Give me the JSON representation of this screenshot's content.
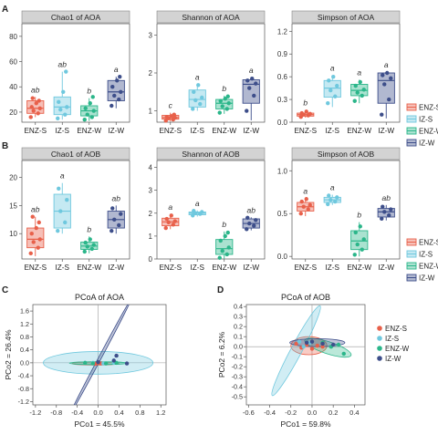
{
  "panel_labels": [
    "A",
    "B",
    "C",
    "D"
  ],
  "colors": {
    "ENZ-S": "#e8604a",
    "IZ-S": "#6fc8de",
    "ENZ-W": "#2bb68a",
    "IZ-W": "#3d4e8a",
    "strip": "#d3d3d3"
  },
  "box_groups": [
    "ENZ-S",
    "IZ-S",
    "ENZ-W",
    "IZ-W"
  ],
  "box_legend": [
    "ENZ-S",
    "IZ-S",
    "ENZ-W",
    "IZ-W"
  ],
  "pcoa_legend": [
    "ENZ-S",
    "IZ-S",
    "ENZ-W",
    "IZ-W"
  ],
  "chart_data": [
    {
      "type": "box",
      "title": "Chao1 of AOA",
      "ylim": [
        12,
        90
      ],
      "yticks": [
        20,
        40,
        60,
        80
      ],
      "groups": [
        "ENZ-S",
        "IZ-S",
        "ENZ-W",
        "IZ-W"
      ],
      "letters": [
        "ab",
        "ab",
        "b",
        "a"
      ],
      "boxes": [
        {
          "min": 16,
          "q1": 19,
          "median": 23,
          "q3": 29,
          "max": 32,
          "points": [
            16,
            19,
            21,
            23,
            24,
            27,
            29,
            31
          ]
        },
        {
          "min": 14,
          "q1": 18,
          "median": 24,
          "q3": 32,
          "max": 52,
          "points": [
            15,
            18,
            22,
            24,
            28,
            36,
            52
          ]
        },
        {
          "min": 13,
          "q1": 17,
          "median": 21,
          "q3": 25,
          "max": 31,
          "points": [
            14,
            16,
            18,
            21,
            23,
            27,
            32
          ]
        },
        {
          "min": 23,
          "q1": 29,
          "median": 36,
          "q3": 45,
          "max": 48,
          "points": [
            25,
            30,
            33,
            36,
            40,
            45,
            48
          ]
        }
      ]
    },
    {
      "type": "box",
      "title": "Shannon of AOA",
      "ylim": [
        0.7,
        3.3
      ],
      "yticks": [
        1,
        2,
        3
      ],
      "groups": [
        "ENZ-S",
        "IZ-S",
        "ENZ-W",
        "IZ-W"
      ],
      "letters": [
        "c",
        "a",
        "b",
        "a"
      ],
      "boxes": [
        {
          "min": 0.72,
          "q1": 0.78,
          "median": 0.82,
          "q3": 0.88,
          "max": 0.95,
          "points": [
            0.74,
            0.77,
            0.8,
            0.82,
            0.84,
            0.86,
            0.9
          ]
        },
        {
          "min": 1.0,
          "q1": 1.1,
          "median": 1.3,
          "q3": 1.55,
          "max": 1.7,
          "points": [
            1.05,
            1.18,
            1.28,
            1.35,
            1.5,
            1.68
          ]
        },
        {
          "min": 0.92,
          "q1": 1.05,
          "median": 1.2,
          "q3": 1.3,
          "max": 1.4,
          "points": [
            0.95,
            1.05,
            1.12,
            1.2,
            1.26,
            1.32,
            1.38
          ]
        },
        {
          "min": 0.75,
          "q1": 1.2,
          "median": 1.7,
          "q3": 1.82,
          "max": 1.88,
          "points": [
            1.0,
            1.4,
            1.6,
            1.72,
            1.8,
            1.85
          ]
        }
      ]
    },
    {
      "type": "box",
      "title": "Simpson of AOA",
      "ylim": [
        0.0,
        1.3
      ],
      "yticks": [
        0.0,
        0.3,
        0.6,
        0.9,
        1.2
      ],
      "groups": [
        "ENZ-S",
        "IZ-S",
        "ENZ-W",
        "IZ-W"
      ],
      "letters": [
        "b",
        "a",
        "a",
        "a"
      ],
      "boxes": [
        {
          "min": 0.06,
          "q1": 0.08,
          "median": 0.1,
          "q3": 0.12,
          "max": 0.16,
          "points": [
            0.07,
            0.09,
            0.1,
            0.11,
            0.12,
            0.14
          ]
        },
        {
          "min": 0.2,
          "q1": 0.33,
          "median": 0.45,
          "q3": 0.55,
          "max": 0.62,
          "points": [
            0.25,
            0.34,
            0.42,
            0.48,
            0.55,
            0.6
          ]
        },
        {
          "min": 0.25,
          "q1": 0.35,
          "median": 0.42,
          "q3": 0.5,
          "max": 0.56,
          "points": [
            0.28,
            0.35,
            0.39,
            0.43,
            0.48,
            0.53
          ]
        },
        {
          "min": 0.05,
          "q1": 0.25,
          "median": 0.55,
          "q3": 0.65,
          "max": 0.66,
          "points": [
            0.1,
            0.3,
            0.5,
            0.58,
            0.62,
            0.65
          ]
        }
      ]
    },
    {
      "type": "box",
      "title": "Chao1 of AOB",
      "ylim": [
        5.5,
        23
      ],
      "yticks": [
        10,
        15,
        20
      ],
      "groups": [
        "ENZ-S",
        "IZ-S",
        "ENZ-W",
        "IZ-W"
      ],
      "letters": [
        "ab",
        "a",
        "b",
        "ab"
      ],
      "boxes": [
        {
          "min": 6,
          "q1": 7.5,
          "median": 9,
          "q3": 11,
          "max": 13,
          "points": [
            6.5,
            7.5,
            8.5,
            9,
            10,
            11,
            12,
            13
          ]
        },
        {
          "min": 10,
          "q1": 11,
          "median": 14,
          "q3": 17,
          "max": 19,
          "points": [
            10.5,
            12,
            14,
            16,
            18
          ]
        },
        {
          "min": 6.5,
          "q1": 7.2,
          "median": 7.8,
          "q3": 8.5,
          "max": 9.5,
          "points": [
            6.8,
            7.3,
            7.7,
            8,
            8.4,
            9
          ]
        },
        {
          "min": 10,
          "q1": 11,
          "median": 12.5,
          "q3": 14,
          "max": 15,
          "points": [
            10.5,
            11.5,
            12.5,
            13.5,
            14.5
          ]
        }
      ]
    },
    {
      "type": "box",
      "title": "Shannon of AOB",
      "ylim": [
        0,
        4.3
      ],
      "yticks": [
        0,
        1,
        2,
        3,
        4
      ],
      "groups": [
        "ENZ-S",
        "IZ-S",
        "ENZ-W",
        "IZ-W"
      ],
      "letters": [
        "a",
        "a",
        "b",
        "ab"
      ],
      "boxes": [
        {
          "min": 1.3,
          "q1": 1.45,
          "median": 1.62,
          "q3": 1.78,
          "max": 1.95,
          "points": [
            1.35,
            1.5,
            1.6,
            1.65,
            1.75,
            1.9
          ]
        },
        {
          "min": 1.85,
          "q1": 1.93,
          "median": 2.0,
          "q3": 2.05,
          "max": 2.12,
          "points": [
            1.9,
            1.97,
            2.0,
            2.05,
            2.1
          ]
        },
        {
          "min": 0.0,
          "q1": 0.2,
          "median": 0.45,
          "q3": 0.85,
          "max": 1.2,
          "points": [
            0.05,
            0.2,
            0.35,
            0.5,
            0.8,
            1.0,
            1.15
          ]
        },
        {
          "min": 1.25,
          "q1": 1.35,
          "median": 1.55,
          "q3": 1.75,
          "max": 1.82,
          "points": [
            1.3,
            1.45,
            1.55,
            1.7,
            1.8
          ]
        }
      ]
    },
    {
      "type": "box",
      "title": "Simpson of AOB",
      "ylim": [
        -0.03,
        1.12
      ],
      "yticks": [
        0.0,
        0.5,
        1.0
      ],
      "groups": [
        "ENZ-S",
        "IZ-S",
        "ENZ-W",
        "IZ-W"
      ],
      "letters": [
        "a",
        "a",
        "b",
        "ab"
      ],
      "boxes": [
        {
          "min": 0.47,
          "q1": 0.53,
          "median": 0.58,
          "q3": 0.63,
          "max": 0.68,
          "points": [
            0.5,
            0.55,
            0.58,
            0.6,
            0.64,
            0.67
          ]
        },
        {
          "min": 0.6,
          "q1": 0.63,
          "median": 0.66,
          "q3": 0.69,
          "max": 0.72,
          "points": [
            0.61,
            0.64,
            0.66,
            0.69,
            0.71
          ]
        },
        {
          "min": 0.0,
          "q1": 0.08,
          "median": 0.18,
          "q3": 0.3,
          "max": 0.4,
          "points": [
            0.02,
            0.08,
            0.14,
            0.2,
            0.28,
            0.35
          ]
        },
        {
          "min": 0.42,
          "q1": 0.46,
          "median": 0.52,
          "q3": 0.56,
          "max": 0.6,
          "points": [
            0.44,
            0.48,
            0.52,
            0.55,
            0.58
          ]
        }
      ]
    },
    {
      "type": "scatter",
      "title": "PCoA of AOA",
      "xlabel": "PCo1 = 45.5%",
      "ylabel": "PCo2 = 26.4%",
      "xlim": [
        -1.25,
        1.3
      ],
      "ylim": [
        -1.3,
        1.8
      ],
      "xticks": [
        -1.2,
        -0.8,
        -0.4,
        0.0,
        0.4,
        0.8,
        1.2
      ],
      "yticks": [
        -1.2,
        -0.8,
        -0.4,
        0.0,
        0.4,
        0.8,
        1.2,
        1.6
      ],
      "series": [
        {
          "name": "ENZ-S",
          "points": [
            [
              -0.05,
              -0.03
            ],
            [
              0.0,
              -0.01
            ],
            [
              0.05,
              -0.02
            ]
          ],
          "ellipse": {
            "cx": -0.05,
            "cy": -0.02,
            "rx": 0.45,
            "ry": 0.05,
            "angle": 0
          }
        },
        {
          "name": "IZ-S",
          "points": [
            [
              -0.1,
              0.0
            ],
            [
              0.1,
              -0.02
            ],
            [
              0.3,
              0.0
            ]
          ],
          "ellipse": {
            "cx": 0.0,
            "cy": 0.0,
            "rx": 1.05,
            "ry": 0.35,
            "angle": 0
          }
        },
        {
          "name": "ENZ-W",
          "points": [
            [
              -0.25,
              0.0
            ],
            [
              -0.1,
              -0.02
            ],
            [
              0.15,
              -0.02
            ],
            [
              0.35,
              0.0
            ]
          ],
          "ellipse": {
            "cx": 0.0,
            "cy": -0.01,
            "rx": 0.55,
            "ry": 0.045,
            "angle": 0
          }
        },
        {
          "name": "IZ-W",
          "points": [
            [
              0.0,
              0.02
            ],
            [
              0.3,
              0.07
            ],
            [
              0.35,
              0.22
            ],
            [
              0.55,
              -0.02
            ]
          ],
          "ellipse": {
            "cx": 0.05,
            "cy": 0.2,
            "rx": 1.25,
            "ry": 0.035,
            "angle": 62
          }
        }
      ]
    },
    {
      "type": "scatter",
      "title": "PCoA of AOB",
      "xlabel": "PCo1 = 59.8%",
      "ylabel": "PCo2 = 6.2%",
      "xlim": [
        -0.62,
        0.5
      ],
      "ylim": [
        -0.58,
        0.42
      ],
      "xticks": [
        -0.6,
        -0.4,
        -0.2,
        0.0,
        0.2,
        0.4
      ],
      "yticks": [
        -0.5,
        -0.4,
        -0.3,
        -0.2,
        -0.1,
        0.0,
        0.1,
        0.2,
        0.3,
        0.4
      ],
      "series": [
        {
          "name": "ENZ-S",
          "points": [
            [
              -0.15,
              0.03
            ],
            [
              -0.1,
              -0.01
            ],
            [
              -0.05,
              0.02
            ],
            [
              0.0,
              -0.02
            ],
            [
              0.05,
              0.01
            ],
            [
              0.1,
              0.0
            ]
          ],
          "ellipse": {
            "cx": -0.03,
            "cy": 0.01,
            "rx": 0.17,
            "ry": 0.09,
            "angle": 0
          }
        },
        {
          "name": "IZ-S",
          "points": [
            [
              -0.12,
              0.05
            ],
            [
              -0.08,
              0.0
            ],
            [
              -0.02,
              0.04
            ]
          ],
          "ellipse": {
            "cx": -0.15,
            "cy": -0.04,
            "rx": 0.48,
            "ry": 0.055,
            "angle": 62
          }
        },
        {
          "name": "ENZ-W",
          "points": [
            [
              0.1,
              0.04
            ],
            [
              0.18,
              0.0
            ],
            [
              0.25,
              0.02
            ],
            [
              0.3,
              -0.07
            ]
          ],
          "ellipse": {
            "cx": 0.15,
            "cy": -0.01,
            "rx": 0.23,
            "ry": 0.06,
            "angle": -18
          }
        },
        {
          "name": "IZ-W",
          "points": [
            [
              -0.05,
              0.04
            ],
            [
              0.0,
              0.05
            ],
            [
              0.1,
              0.03
            ],
            [
              0.2,
              0.02
            ]
          ],
          "ellipse": {
            "cx": 0.05,
            "cy": 0.04,
            "rx": 0.26,
            "ry": 0.04,
            "angle": 0
          }
        }
      ]
    }
  ]
}
